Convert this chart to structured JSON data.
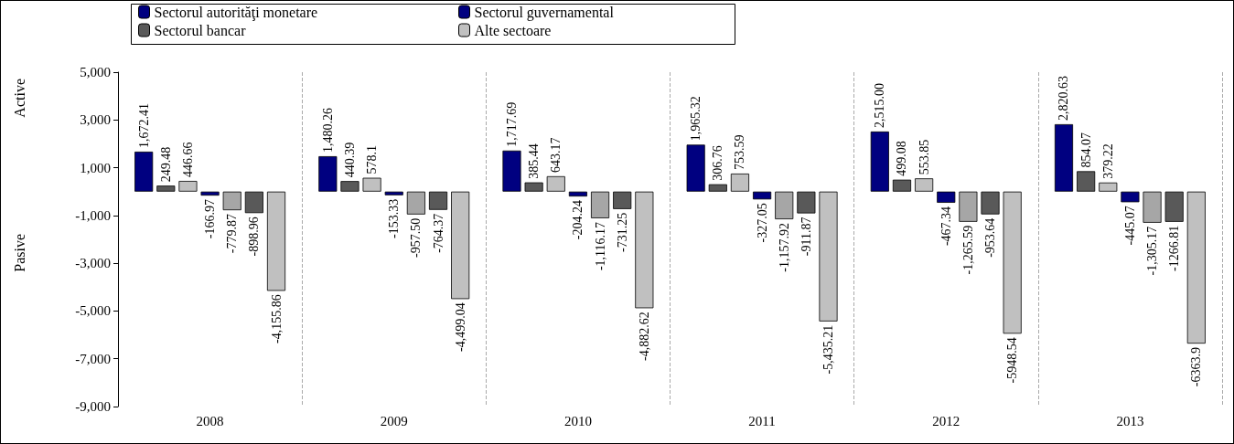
{
  "chart_data": {
    "type": "bar",
    "categories": [
      "2008",
      "2009",
      "2010",
      "2011",
      "2012",
      "2013"
    ],
    "series": [
      {
        "name": "Sectorul autorităţi monetare",
        "color": "#000080",
        "values": [
          1672.41,
          1480.26,
          1717.69,
          1965.32,
          2515.0,
          2820.63
        ],
        "value_labels": [
          "1,672.41",
          "1,480.26",
          "1,717.69",
          "1,965.32",
          "2,515.00",
          "2,820.63"
        ]
      },
      {
        "name": "Sectorul bancar",
        "color": "#595959",
        "values": [
          249.48,
          440.39,
          385.44,
          306.76,
          499.08,
          854.07
        ],
        "value_labels": [
          "249.48",
          "440.39",
          "385.44",
          "306.76",
          "499.08",
          "854.07"
        ]
      },
      {
        "name": "Alte sectoare",
        "color": "#c0c0c0",
        "values": [
          446.66,
          578.1,
          643.17,
          753.59,
          553.85,
          379.22
        ],
        "value_labels": [
          "446.66",
          "578.1",
          "643.17",
          "753.59",
          "553.85",
          "379.22"
        ]
      },
      {
        "name": "Sectorul guvernamental",
        "color": "#000080",
        "values": [
          -166.97,
          -153.33,
          -204.24,
          -327.05,
          -467.34,
          -445.07
        ],
        "value_labels": [
          "-166.97",
          "-153.33",
          "-204.24",
          "-327.05",
          "-467.34",
          "-445.07"
        ]
      },
      {
        "color": "#a6a6a6",
        "values": [
          -779.87,
          -957.5,
          -1116.17,
          -1157.92,
          -1265.59,
          -1305.17
        ],
        "value_labels": [
          "-779.87",
          "-957.50",
          "-1,116.17",
          "-1,157.92",
          "-1,265.59",
          "-1,305.17"
        ]
      },
      {
        "color": "#595959",
        "values": [
          -898.96,
          -764.37,
          -731.25,
          -911.87,
          -953.64,
          -1266.81
        ],
        "value_labels": [
          "-898.96",
          "-764.37",
          "-731.25",
          "-911.87",
          "-953.64",
          "-1266.81"
        ]
      },
      {
        "color": "#c0c0c0",
        "values": [
          -4155.86,
          -4499.04,
          -4882.62,
          -5435.21,
          -5948.54,
          -6363.9
        ],
        "value_labels": [
          "-4,155.86",
          "-4,499.04",
          "-4,882.62",
          "-5,435.21",
          "-5948.54",
          "-6363.9"
        ]
      }
    ],
    "ylim": [
      -9000,
      5000
    ],
    "yticks": [
      {
        "value": -9000,
        "label": "-9,000"
      },
      {
        "value": -7000,
        "label": "-7,000"
      },
      {
        "value": -5000,
        "label": "-5,000"
      },
      {
        "value": -3000,
        "label": "-3,000"
      },
      {
        "value": -1000,
        "label": "-1,000"
      },
      {
        "value": 1000,
        "label": "1,000"
      },
      {
        "value": 3000,
        "label": "3,000"
      },
      {
        "value": 5000,
        "label": "5,000"
      }
    ],
    "annotations": [
      "Active",
      "Pasive"
    ],
    "grid": "x",
    "legend": "top"
  }
}
